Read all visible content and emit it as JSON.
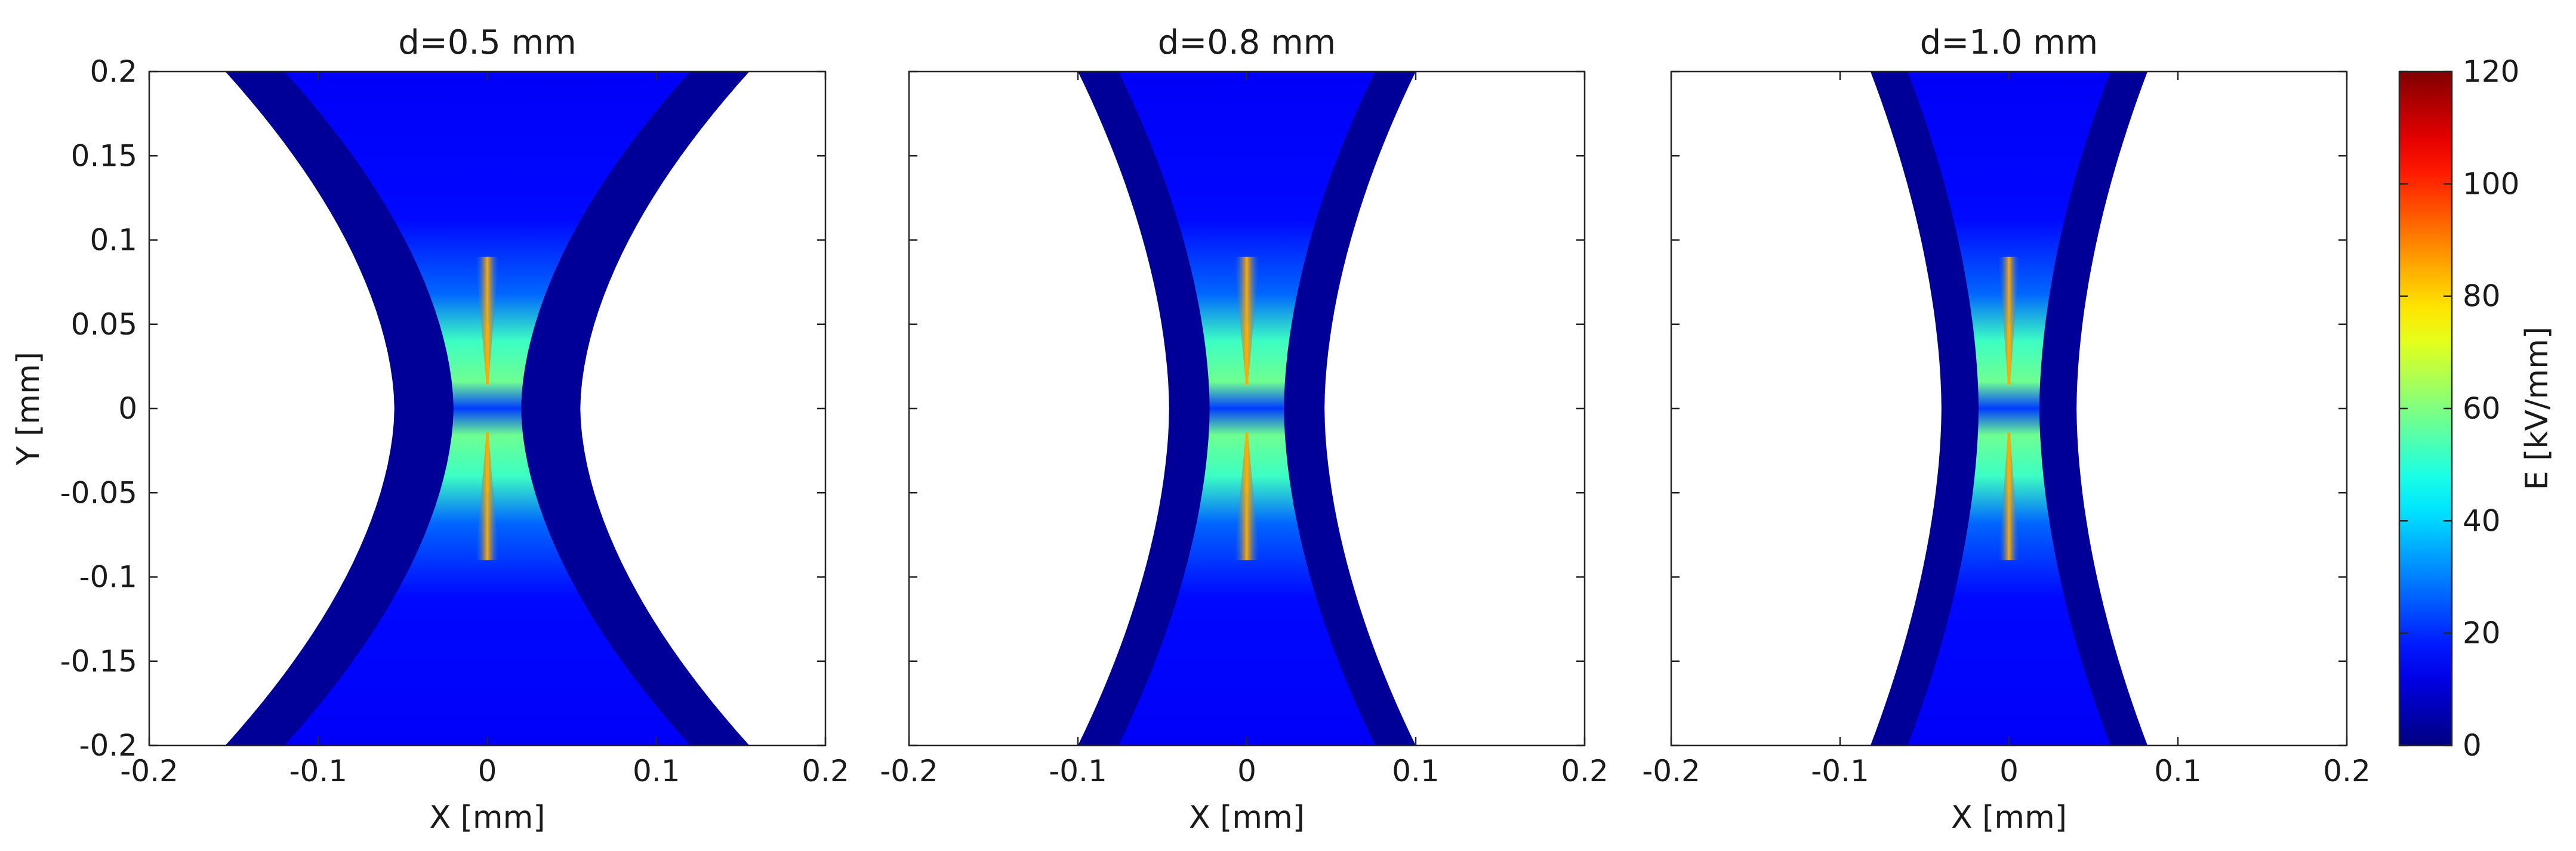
{
  "chart_data": {
    "type": "heatmap",
    "subplots": [
      {
        "title": "d=0.5 mm",
        "d_mm": 0.5,
        "xlabel": "X [mm]",
        "ylabel": "Y [mm]",
        "xlim": [
          -0.2,
          0.2
        ],
        "ylim": [
          -0.2,
          0.2
        ],
        "xticks": [
          -0.2,
          -0.1,
          0,
          0.1,
          0.2
        ],
        "xtick_labels": [
          "-0.2",
          "-0.1",
          "0",
          "0.1",
          "0.2"
        ],
        "yticks": [
          0.2,
          0.15,
          0.1,
          0.05,
          0,
          -0.05,
          -0.1,
          -0.15,
          -0.2
        ],
        "ytick_labels": [
          "0.2",
          "0.15",
          "0.1",
          "0.05",
          "0",
          "-0.05",
          "-0.1",
          "-0.15",
          "-0.2"
        ],
        "half_gap_mm": 0.02,
        "edge_half_width_at_ylim_mm": 0.12,
        "electrode_thickness_mm": 0.035
      },
      {
        "title": "d=0.8 mm",
        "d_mm": 0.8,
        "xlabel": "X [mm]",
        "ylabel": "",
        "xlim": [
          -0.2,
          0.2
        ],
        "ylim": [
          -0.2,
          0.2
        ],
        "xticks": [
          -0.2,
          -0.1,
          0,
          0.1,
          0.2
        ],
        "xtick_labels": [
          "-0.2",
          "-0.1",
          "0",
          "0.1",
          "0.2"
        ],
        "yticks": [
          0.2,
          0.15,
          0.1,
          0.05,
          0,
          -0.05,
          -0.1,
          -0.15,
          -0.2
        ],
        "ytick_labels": [],
        "half_gap_mm": 0.022,
        "edge_half_width_at_ylim_mm": 0.076,
        "electrode_thickness_mm": 0.024
      },
      {
        "title": "d=1.0 mm",
        "d_mm": 1.0,
        "xlabel": "X [mm]",
        "ylabel": "",
        "xlim": [
          -0.2,
          0.2
        ],
        "ylim": [
          -0.2,
          0.2
        ],
        "xticks": [
          -0.2,
          -0.1,
          0,
          0.1,
          0.2
        ],
        "xtick_labels": [
          "-0.2",
          "-0.1",
          "0",
          "0.1",
          "0.2"
        ],
        "yticks": [
          0.2,
          0.15,
          0.1,
          0.05,
          0,
          -0.05,
          -0.1,
          -0.15,
          -0.2
        ],
        "ytick_labels": [],
        "half_gap_mm": 0.018,
        "edge_half_width_at_ylim_mm": 0.06,
        "electrode_thickness_mm": 0.022
      }
    ],
    "colorbar": {
      "label": "E [kV/mm]",
      "colormap": "jet",
      "range": [
        0,
        120
      ],
      "ticks": [
        0,
        20,
        40,
        60,
        80,
        100,
        120
      ],
      "tick_labels": [
        "0",
        "20",
        "40",
        "60",
        "80",
        "100",
        "120"
      ]
    },
    "field_levels_kV_per_mm": {
      "electrode": 3,
      "gap_far": 14,
      "gap_mid": 27,
      "near_tip": 52,
      "tip": 85,
      "center": 22
    },
    "grid": false,
    "legend": "none"
  }
}
